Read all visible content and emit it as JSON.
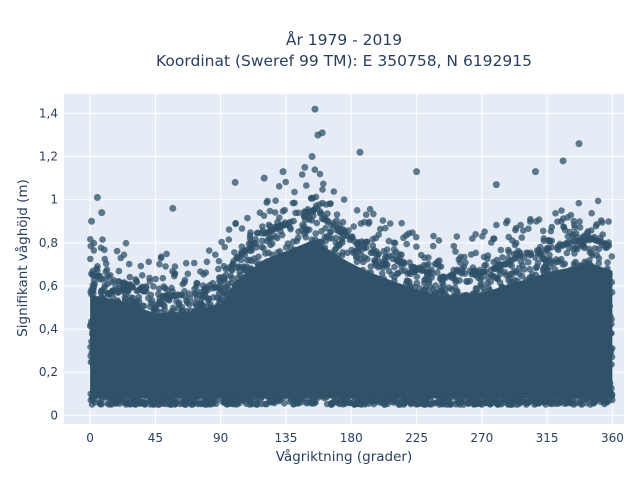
{
  "chart_data": {
    "type": "scatter",
    "title_lines": [
      "År 1979 - 2019",
      "Koordinat (Sweref 99 TM): E 350758, N 6192915"
    ],
    "xlabel": "Vågriktning (grader)",
    "ylabel": "Signifikant våghöjd (m)",
    "xlim": [
      -18,
      368
    ],
    "ylim": [
      -0.04,
      1.49
    ],
    "x_ticks": [
      0,
      45,
      90,
      135,
      180,
      225,
      270,
      315,
      360
    ],
    "x_tick_labels": [
      "0",
      "45",
      "90",
      "135",
      "180",
      "225",
      "270",
      "315",
      "360"
    ],
    "y_ticks": [
      0,
      0.2,
      0.4,
      0.6,
      0.8,
      1.0,
      1.2,
      1.4
    ],
    "y_tick_labels": [
      "0",
      "0,2",
      "0,4",
      "0,6",
      "0,8",
      "1",
      "1,2",
      "1,4"
    ],
    "grid": true,
    "legend": "none",
    "marker_color": "#2f5269",
    "plot_background": "#e5ecf6",
    "approx_upper_envelope": {
      "x": [
        0,
        20,
        45,
        70,
        90,
        100,
        120,
        140,
        155,
        170,
        190,
        210,
        240,
        270,
        295,
        320,
        345,
        360
      ],
      "y_dense": [
        0.65,
        0.62,
        0.55,
        0.56,
        0.6,
        0.72,
        0.84,
        0.9,
        0.95,
        0.86,
        0.78,
        0.72,
        0.64,
        0.66,
        0.72,
        0.78,
        0.82,
        0.78
      ]
    },
    "dense_lower_bound": 0.05,
    "notable_points": [
      {
        "x": 5,
        "y": 1.01
      },
      {
        "x": 1,
        "y": 0.9
      },
      {
        "x": 8,
        "y": 0.94
      },
      {
        "x": 155,
        "y": 1.42
      },
      {
        "x": 157,
        "y": 1.3
      },
      {
        "x": 160,
        "y": 1.31
      },
      {
        "x": 148,
        "y": 1.15
      },
      {
        "x": 153,
        "y": 1.2
      },
      {
        "x": 186,
        "y": 1.22
      },
      {
        "x": 225,
        "y": 1.13
      },
      {
        "x": 337,
        "y": 1.26
      },
      {
        "x": 326,
        "y": 1.18
      },
      {
        "x": 307,
        "y": 1.13
      },
      {
        "x": 280,
        "y": 1.07
      },
      {
        "x": 133,
        "y": 1.13
      },
      {
        "x": 120,
        "y": 1.1
      },
      {
        "x": 100,
        "y": 1.08
      },
      {
        "x": 57,
        "y": 0.96
      }
    ]
  }
}
